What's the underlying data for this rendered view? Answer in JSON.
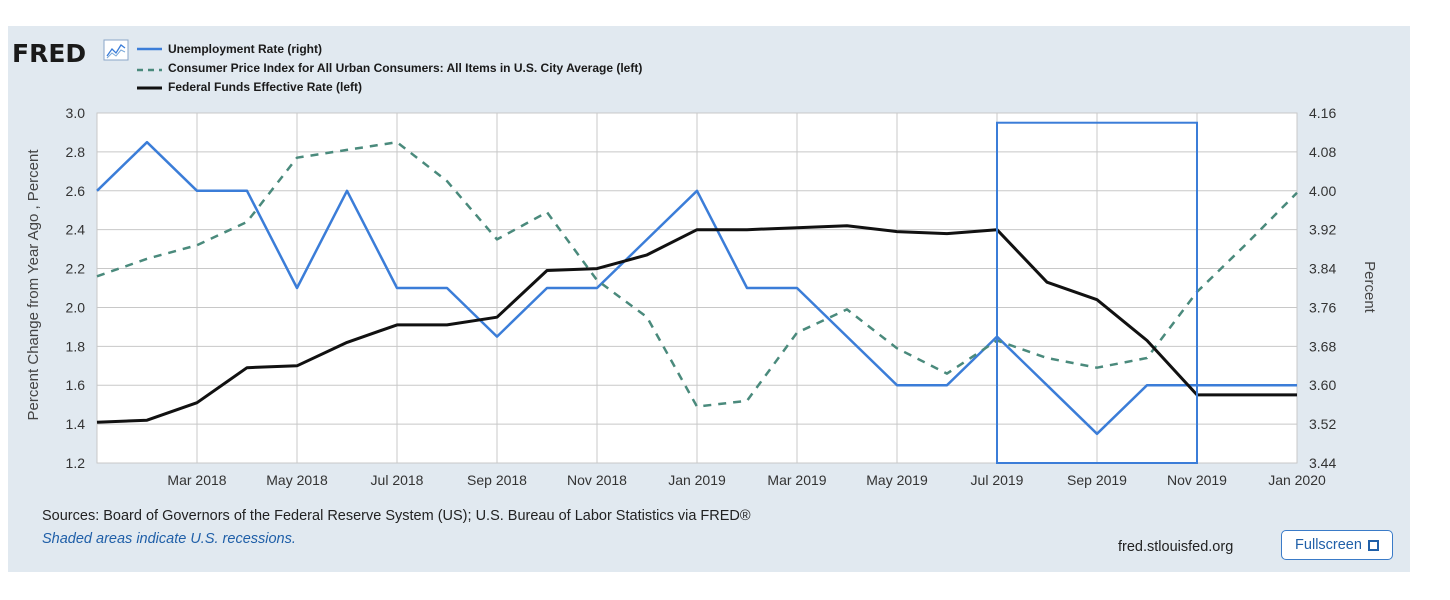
{
  "brand": {
    "logo_text": "FRED"
  },
  "footer": {
    "sources": "Sources: Board of Governors of the Federal Reserve System (US); U.S. Bureau of Labor Statistics via FRED®",
    "recessions_note": "Shaded areas indicate U.S. recessions.",
    "site": "fred.stlouisfed.org",
    "fullscreen_label": "Fullscreen",
    "fullscreen_icon": "expand-icon"
  },
  "chart_data": {
    "type": "line",
    "x_ticks": [
      "Mar 2018",
      "May 2018",
      "Jul 2018",
      "Sep 2018",
      "Nov 2018",
      "Jan 2019",
      "Mar 2019",
      "May 2019",
      "Jul 2019",
      "Sep 2019",
      "Nov 2019",
      "Jan 2020"
    ],
    "x_tick_dates": [
      "2018-03",
      "2018-05",
      "2018-07",
      "2018-09",
      "2018-11",
      "2019-01",
      "2019-03",
      "2019-05",
      "2019-07",
      "2019-09",
      "2019-11",
      "2020-01"
    ],
    "x_range": [
      "2018-01",
      "2020-01"
    ],
    "ylabel_left": "Percent Change from Year Ago , Percent",
    "ylabel_right": "Percent",
    "ylim_left": [
      1.2,
      3.0
    ],
    "yticks_left": [
      "1.2",
      "1.4",
      "1.6",
      "1.8",
      "2.0",
      "2.2",
      "2.4",
      "2.6",
      "2.8",
      "3.0"
    ],
    "ylim_right": [
      3.44,
      4.16
    ],
    "yticks_right": [
      "3.44",
      "3.52",
      "3.60",
      "3.68",
      "3.76",
      "3.84",
      "3.92",
      "4.00",
      "4.08",
      "4.16"
    ],
    "grid": true,
    "legend_position": "top-left",
    "series": [
      {
        "name": "Unemployment Rate (right)",
        "axis": "right",
        "color": "#3b7dd8",
        "style": "solid",
        "x": [
          "2018-01",
          "2018-02",
          "2018-03",
          "2018-04",
          "2018-05",
          "2018-06",
          "2018-07",
          "2018-08",
          "2018-09",
          "2018-10",
          "2018-11",
          "2018-12",
          "2019-01",
          "2019-02",
          "2019-03",
          "2019-04",
          "2019-05",
          "2019-06",
          "2019-07",
          "2019-08",
          "2019-09",
          "2019-10",
          "2019-11",
          "2019-12",
          "2020-01"
        ],
        "values": [
          4.0,
          4.1,
          4.0,
          4.0,
          3.8,
          4.0,
          3.8,
          3.8,
          3.7,
          3.8,
          3.8,
          3.9,
          4.0,
          3.8,
          3.8,
          3.7,
          3.6,
          3.6,
          3.7,
          3.6,
          3.5,
          3.6,
          3.6,
          3.6,
          3.6
        ]
      },
      {
        "name": "Consumer Price Index for All Urban Consumers: All Items in U.S. City Average (left)",
        "axis": "left",
        "color": "#4a8a7c",
        "style": "dashed",
        "x": [
          "2018-01",
          "2018-02",
          "2018-03",
          "2018-04",
          "2018-05",
          "2018-06",
          "2018-07",
          "2018-08",
          "2018-09",
          "2018-10",
          "2018-11",
          "2018-12",
          "2019-01",
          "2019-02",
          "2019-03",
          "2019-04",
          "2019-05",
          "2019-06",
          "2019-07",
          "2019-08",
          "2019-09",
          "2019-10",
          "2019-11",
          "2019-12",
          "2020-01"
        ],
        "values": [
          2.16,
          2.25,
          2.32,
          2.44,
          2.77,
          2.81,
          2.85,
          2.65,
          2.35,
          2.49,
          2.14,
          1.95,
          1.49,
          1.52,
          1.87,
          1.99,
          1.79,
          1.66,
          1.83,
          1.74,
          1.69,
          1.74,
          2.08,
          2.33,
          2.59
        ]
      },
      {
        "name": "Federal Funds Effective Rate (left)",
        "axis": "left",
        "color": "#111111",
        "style": "solid",
        "x": [
          "2018-01",
          "2018-02",
          "2018-03",
          "2018-04",
          "2018-05",
          "2018-06",
          "2018-07",
          "2018-08",
          "2018-09",
          "2018-10",
          "2018-11",
          "2018-12",
          "2019-01",
          "2019-02",
          "2019-03",
          "2019-04",
          "2019-05",
          "2019-06",
          "2019-07",
          "2019-08",
          "2019-09",
          "2019-10",
          "2019-11",
          "2019-12",
          "2020-01"
        ],
        "values": [
          1.41,
          1.42,
          1.51,
          1.69,
          1.7,
          1.82,
          1.91,
          1.91,
          1.95,
          2.19,
          2.2,
          2.27,
          2.4,
          2.4,
          2.41,
          2.42,
          2.39,
          2.38,
          2.4,
          2.13,
          2.04,
          1.83,
          1.55,
          1.55,
          1.55
        ]
      }
    ],
    "annotations": [
      {
        "type": "rectangle",
        "color": "#3b7dd8",
        "x_range": [
          "2019-07",
          "2019-11"
        ],
        "y_range_left": [
          1.2,
          2.95
        ]
      }
    ]
  }
}
